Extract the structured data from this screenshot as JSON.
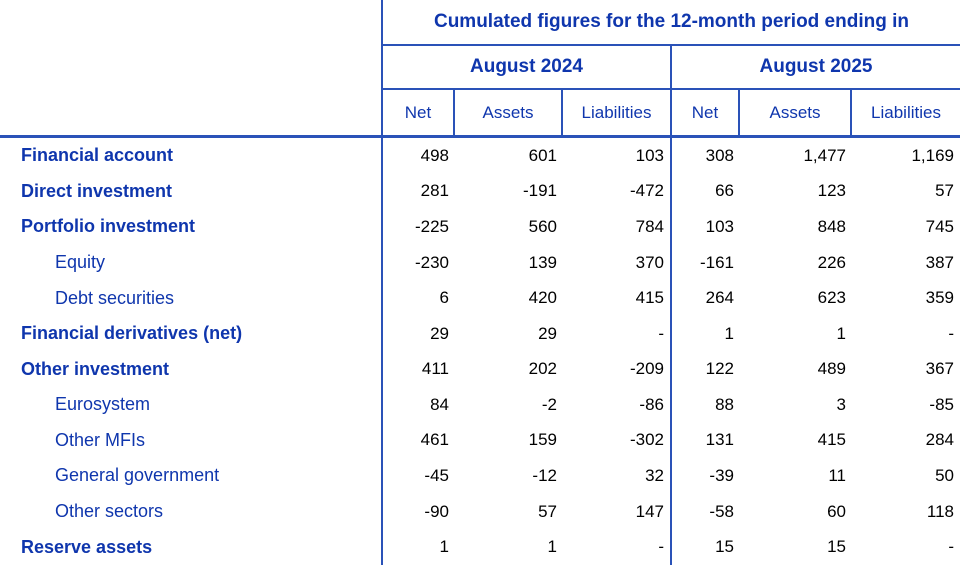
{
  "colors": {
    "text_blue": "#0f36ad",
    "border_blue": "#2a52b8",
    "number_black": "#000000"
  },
  "table": {
    "title": "Cumulated figures for the 12-month period ending in",
    "groups": [
      {
        "label": "August 2024"
      },
      {
        "label": "August 2025"
      }
    ],
    "columns": [
      "Net",
      "Assets",
      "Liabilities",
      "Net",
      "Assets",
      "Liabilities"
    ],
    "rows": [
      {
        "label": "Financial account",
        "bold": true,
        "values": [
          "498",
          "601",
          "103",
          "308",
          "1,477",
          "1,169"
        ]
      },
      {
        "label": "Direct investment",
        "bold": true,
        "values": [
          "281",
          "-191",
          "-472",
          "66",
          "123",
          "57"
        ]
      },
      {
        "label": "Portfolio investment",
        "bold": true,
        "values": [
          "-225",
          "560",
          "784",
          "103",
          "848",
          "745"
        ]
      },
      {
        "label": "Equity",
        "bold": false,
        "values": [
          "-230",
          "139",
          "370",
          "-161",
          "226",
          "387"
        ]
      },
      {
        "label": "Debt securities",
        "bold": false,
        "values": [
          "6",
          "420",
          "415",
          "264",
          "623",
          "359"
        ]
      },
      {
        "label": "Financial derivatives (net)",
        "bold": true,
        "values": [
          "29",
          "29",
          "-",
          "1",
          "1",
          "-"
        ]
      },
      {
        "label": "Other investment",
        "bold": true,
        "values": [
          "411",
          "202",
          "-209",
          "122",
          "489",
          "367"
        ]
      },
      {
        "label": "Eurosystem",
        "bold": false,
        "values": [
          "84",
          "-2",
          "-86",
          "88",
          "3",
          "-85"
        ]
      },
      {
        "label": "Other MFIs",
        "bold": false,
        "values": [
          "461",
          "159",
          "-302",
          "131",
          "415",
          "284"
        ]
      },
      {
        "label": "General government",
        "bold": false,
        "values": [
          "-45",
          "-12",
          "32",
          "-39",
          "11",
          "50"
        ]
      },
      {
        "label": "Other sectors",
        "bold": false,
        "values": [
          "-90",
          "57",
          "147",
          "-58",
          "60",
          "118"
        ]
      },
      {
        "label": "Reserve assets",
        "bold": true,
        "values": [
          "1",
          "1",
          "-",
          "15",
          "15",
          "-"
        ]
      }
    ]
  }
}
